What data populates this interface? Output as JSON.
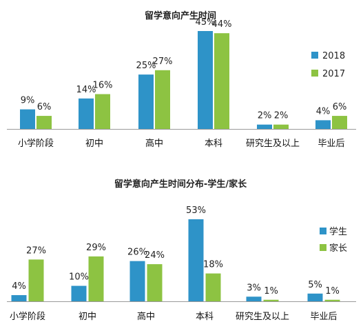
{
  "colors": {
    "blue": "#2e93c8",
    "green": "#8dc342"
  },
  "chart_data": [
    {
      "type": "bar",
      "title": "留学意向产生时间",
      "categories": [
        "小学阶段",
        "初中",
        "高中",
        "本科",
        "研究生及以上",
        "毕业后"
      ],
      "series": [
        {
          "name": "2018",
          "values": [
            9,
            14,
            25,
            45,
            2,
            4
          ],
          "labels": [
            "9%",
            "14%",
            "25%",
            "45%",
            "2%",
            "4%"
          ]
        },
        {
          "name": "2017",
          "values": [
            6,
            16,
            27,
            44,
            2,
            6
          ],
          "labels": [
            "6%",
            "16%",
            "27%",
            "44%",
            "2%",
            "6%"
          ]
        }
      ],
      "unit": "%",
      "ylim": [
        0,
        45
      ],
      "legend": "right",
      "grid": false
    },
    {
      "type": "bar",
      "title": "留学意向产生时间分布-学生/家长",
      "categories": [
        "小学阶段",
        "初中",
        "高中",
        "本科",
        "研究生及以上",
        "毕业后"
      ],
      "series": [
        {
          "name": "学生",
          "values": [
            4,
            10,
            26,
            53,
            3,
            5
          ],
          "labels": [
            "4%",
            "10%",
            "26%",
            "53%",
            "3%",
            "5%"
          ]
        },
        {
          "name": "家长",
          "values": [
            27,
            29,
            24,
            18,
            1,
            1
          ],
          "labels": [
            "27%",
            "29%",
            "24%",
            "18%",
            "1%",
            "1%"
          ]
        }
      ],
      "unit": "%",
      "ylim": [
        0,
        53
      ],
      "legend": "right",
      "grid": false
    }
  ]
}
